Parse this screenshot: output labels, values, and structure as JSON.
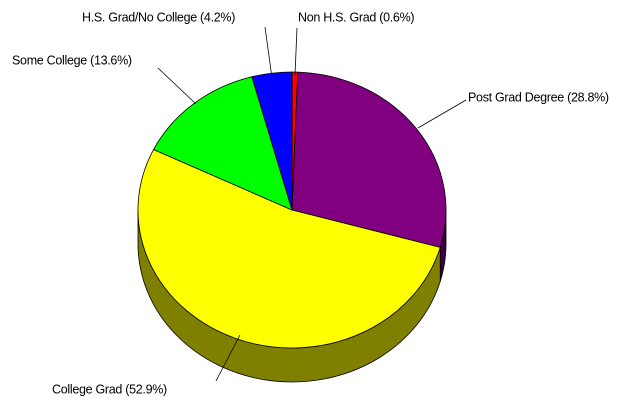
{
  "chart_data": {
    "type": "pie",
    "categories": [
      "Non H.S. Grad (0.6%)",
      "Post Grad Degree (28.8%)",
      "College Grad (52.9%)",
      "Some College (13.6%)",
      "H.S. Grad/No College (4.2%)"
    ],
    "values": [
      0.6,
      28.8,
      52.9,
      13.6,
      4.2
    ],
    "colors": [
      "#ff0000",
      "#800080",
      "#ffff00",
      "#00ff00",
      "#0000ff"
    ],
    "side_colors": [
      "#800000",
      "#400040",
      "#808000",
      "#008000",
      "#000080"
    ]
  }
}
